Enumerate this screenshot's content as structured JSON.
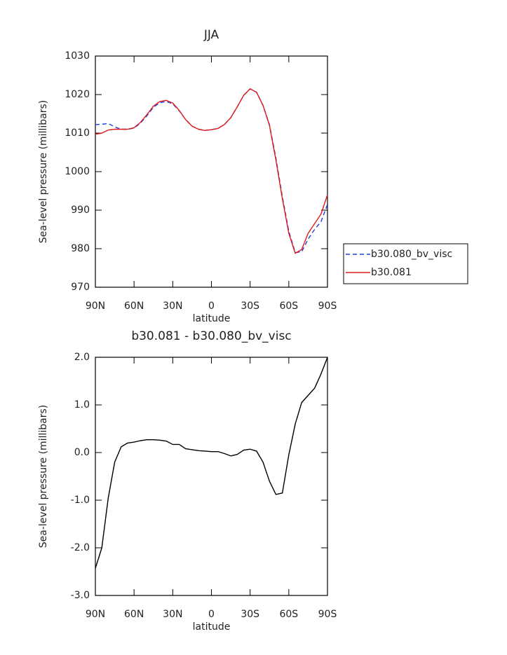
{
  "chart_data": [
    {
      "type": "line",
      "title": "JJA",
      "xlabel": "latitude",
      "ylabel": "Sea-level pressure (millibars)",
      "x": [
        90,
        85,
        80,
        75,
        70,
        65,
        60,
        55,
        50,
        45,
        40,
        35,
        30,
        25,
        20,
        15,
        10,
        5,
        0,
        -5,
        -10,
        -15,
        -20,
        -25,
        -30,
        -35,
        -40,
        -45,
        -50,
        -55,
        -60,
        -65,
        -70,
        -75,
        -80,
        -85,
        -90
      ],
      "xlim": [
        90,
        -90
      ],
      "xticks": [
        {
          "value": 90,
          "label": "90N"
        },
        {
          "value": 60,
          "label": "60N"
        },
        {
          "value": 30,
          "label": "30N"
        },
        0,
        {
          "value": -30,
          "label": "30S"
        },
        {
          "value": -60,
          "label": "60S"
        },
        {
          "value": -90,
          "label": "90S"
        }
      ],
      "ylim": [
        970,
        1030
      ],
      "yticks": [
        970,
        980,
        990,
        1000,
        1010,
        1020,
        1030
      ],
      "legend": "right",
      "series": [
        {
          "name": "b30.080_bv_visc",
          "color": "#1f3fd6",
          "linestyle": "dashed",
          "values": [
            1012.2,
            1012.3,
            1012.5,
            1011.6,
            1011.0,
            1011.0,
            1011.3,
            1012.6,
            1014.5,
            1016.7,
            1017.9,
            1018.2,
            1017.6,
            1015.8,
            1013.5,
            1011.8,
            1011.0,
            1010.7,
            1010.9,
            1011.2,
            1012.2,
            1014.0,
            1016.8,
            1019.8,
            1021.5,
            1020.6,
            1017.2,
            1012.2,
            1003.5,
            993.5,
            984.5,
            979.0,
            979.2,
            982.5,
            985.0,
            987.0,
            991.5
          ]
        },
        {
          "name": "b30.081",
          "color": "#e01a1a",
          "linestyle": "solid",
          "values": [
            1009.7,
            1010.0,
            1010.8,
            1011.0,
            1011.0,
            1011.0,
            1011.4,
            1012.8,
            1014.8,
            1017.0,
            1018.2,
            1018.5,
            1017.8,
            1015.9,
            1013.5,
            1011.8,
            1011.0,
            1010.7,
            1010.9,
            1011.2,
            1012.2,
            1014.0,
            1016.8,
            1019.8,
            1021.5,
            1020.6,
            1017.2,
            1012.0,
            1003.0,
            993.0,
            984.0,
            978.8,
            979.8,
            984.0,
            986.5,
            989.0,
            994.0
          ]
        }
      ]
    },
    {
      "type": "line",
      "title": "b30.081 - b30.080_bv_visc",
      "xlabel": "latitude",
      "ylabel": "Sea-level pressure (millibars)",
      "x": [
        90,
        85,
        80,
        75,
        70,
        65,
        60,
        55,
        50,
        45,
        40,
        35,
        30,
        25,
        20,
        15,
        10,
        5,
        0,
        -5,
        -10,
        -15,
        -20,
        -25,
        -30,
        -35,
        -40,
        -45,
        -50,
        -55,
        -60,
        -65,
        -70,
        -75,
        -80,
        -85,
        -90
      ],
      "xlim": [
        90,
        -90
      ],
      "xticks": [
        {
          "value": 90,
          "label": "90N"
        },
        {
          "value": 60,
          "label": "60N"
        },
        {
          "value": 30,
          "label": "30N"
        },
        0,
        {
          "value": -30,
          "label": "30S"
        },
        {
          "value": -60,
          "label": "60S"
        },
        {
          "value": -90,
          "label": "90S"
        }
      ],
      "ylim": [
        -3,
        2
      ],
      "yticks": [
        {
          "value": -3,
          "label": "-3.0"
        },
        {
          "value": -2,
          "label": "-2.0"
        },
        {
          "value": -1,
          "label": "-1.0"
        },
        {
          "value": 0,
          "label": "0.0"
        },
        {
          "value": 1,
          "label": "1.0"
        },
        {
          "value": 2,
          "label": "2.0"
        }
      ],
      "color": "#000000",
      "values": [
        -2.43,
        -2.0,
        -0.95,
        -0.2,
        0.12,
        0.2,
        0.22,
        0.25,
        0.27,
        0.27,
        0.26,
        0.24,
        0.17,
        0.17,
        0.08,
        0.06,
        0.04,
        0.03,
        0.02,
        0.02,
        -0.02,
        -0.07,
        -0.04,
        0.05,
        0.07,
        0.03,
        -0.2,
        -0.6,
        -0.88,
        -0.85,
        -0.05,
        0.6,
        1.05,
        1.2,
        1.35,
        1.65,
        2.0
      ]
    }
  ]
}
